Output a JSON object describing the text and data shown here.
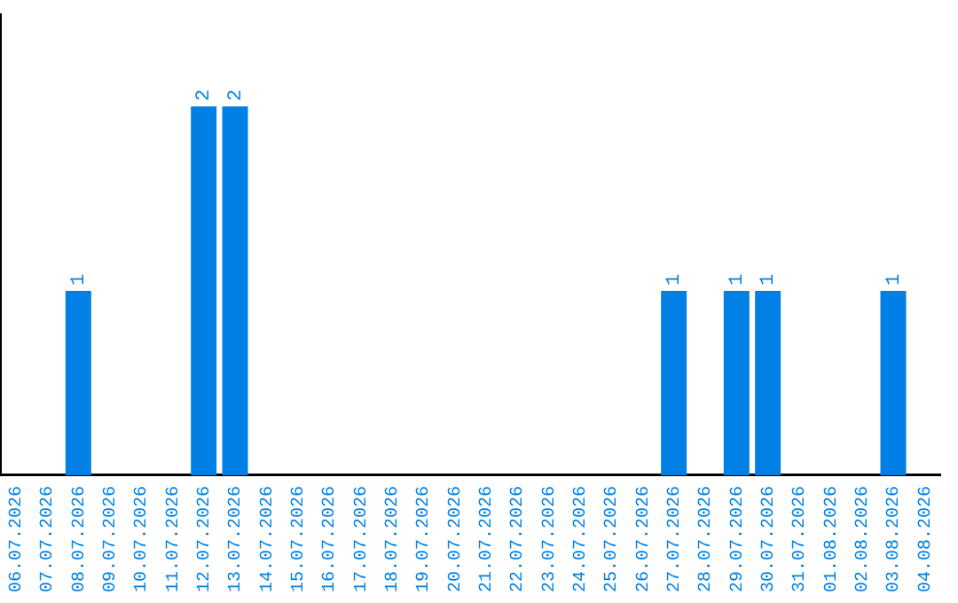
{
  "chart_data": {
    "type": "bar",
    "categories": [
      "06.07.2026",
      "07.07.2026",
      "08.07.2026",
      "09.07.2026",
      "10.07.2026",
      "11.07.2026",
      "12.07.2026",
      "13.07.2026",
      "14.07.2026",
      "15.07.2026",
      "16.07.2026",
      "17.07.2026",
      "18.07.2026",
      "19.07.2026",
      "20.07.2026",
      "21.07.2026",
      "22.07.2026",
      "23.07.2026",
      "24.07.2026",
      "25.07.2026",
      "26.07.2026",
      "27.07.2026",
      "28.07.2026",
      "29.07.2026",
      "30.07.2026",
      "31.07.2026",
      "01.08.2026",
      "02.08.2026",
      "03.08.2026",
      "04.08.2026"
    ],
    "values": [
      0,
      0,
      1,
      0,
      0,
      0,
      2,
      2,
      0,
      0,
      0,
      0,
      0,
      0,
      0,
      0,
      0,
      0,
      0,
      0,
      0,
      1,
      0,
      1,
      1,
      0,
      0,
      0,
      1,
      0
    ],
    "value_labels": [
      null,
      null,
      "1",
      null,
      null,
      null,
      "2",
      "2",
      null,
      null,
      null,
      null,
      null,
      null,
      null,
      null,
      null,
      null,
      null,
      null,
      null,
      "1",
      null,
      "1",
      "1",
      null,
      null,
      null,
      "1",
      null
    ],
    "color": "#0080e4",
    "grid": false,
    "legend": false,
    "tick_labels": "x"
  }
}
